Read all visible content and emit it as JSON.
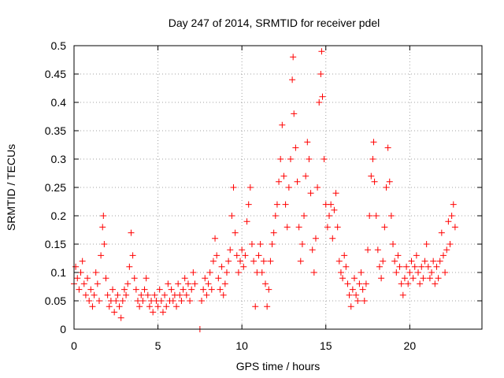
{
  "chart_data": {
    "type": "scatter",
    "title": "Day 247 of 2014, SRMTID for receiver pdel",
    "xlabel": "GPS time / hours",
    "ylabel": "SRMTID / TECUs",
    "xlim": [
      0,
      24.3
    ],
    "ylim": [
      0,
      0.5
    ],
    "grid": true,
    "marker": "+",
    "xticks": [
      0,
      5,
      10,
      15,
      20
    ],
    "xtick_labels": [
      "0",
      "5",
      "10",
      "15",
      "20"
    ],
    "yticks": [
      0,
      0.05,
      0.1,
      0.15,
      0.2,
      0.25,
      0.3,
      0.35,
      0.4,
      0.45,
      0.5
    ],
    "ytick_labels": [
      "0",
      "0.05",
      "0.1",
      "0.15",
      "0.2",
      "0.25",
      "0.3",
      "0.35",
      "0.4",
      "0.45",
      "0.5"
    ],
    "series": [
      {
        "name": "SRMTID",
        "color": "#ff0000",
        "points": [
          [
            0.0,
            0.08
          ],
          [
            0.1,
            0.11
          ],
          [
            0.2,
            0.09
          ],
          [
            0.3,
            0.07
          ],
          [
            0.4,
            0.1
          ],
          [
            0.5,
            0.12
          ],
          [
            0.6,
            0.08
          ],
          [
            0.7,
            0.06
          ],
          [
            0.8,
            0.09
          ],
          [
            0.9,
            0.05
          ],
          [
            1.0,
            0.07
          ],
          [
            1.1,
            0.04
          ],
          [
            1.2,
            0.06
          ],
          [
            1.3,
            0.1
          ],
          [
            1.4,
            0.08
          ],
          [
            1.5,
            0.05
          ],
          [
            1.6,
            0.13
          ],
          [
            1.7,
            0.18
          ],
          [
            1.75,
            0.2
          ],
          [
            1.8,
            0.15
          ],
          [
            1.9,
            0.09
          ],
          [
            2.0,
            0.06
          ],
          [
            2.1,
            0.04
          ],
          [
            2.2,
            0.05
          ],
          [
            2.3,
            0.07
          ],
          [
            2.4,
            0.03
          ],
          [
            2.5,
            0.05
          ],
          [
            2.6,
            0.06
          ],
          [
            2.7,
            0.04
          ],
          [
            2.8,
            0.02
          ],
          [
            2.9,
            0.05
          ],
          [
            3.0,
            0.07
          ],
          [
            3.1,
            0.06
          ],
          [
            3.2,
            0.08
          ],
          [
            3.3,
            0.11
          ],
          [
            3.4,
            0.17
          ],
          [
            3.5,
            0.13
          ],
          [
            3.6,
            0.09
          ],
          [
            3.7,
            0.07
          ],
          [
            3.8,
            0.05
          ],
          [
            3.9,
            0.04
          ],
          [
            4.0,
            0.06
          ],
          [
            4.1,
            0.05
          ],
          [
            4.2,
            0.07
          ],
          [
            4.3,
            0.09
          ],
          [
            4.4,
            0.06
          ],
          [
            4.5,
            0.04
          ],
          [
            4.6,
            0.05
          ],
          [
            4.7,
            0.03
          ],
          [
            4.8,
            0.06
          ],
          [
            4.9,
            0.05
          ],
          [
            5.0,
            0.04
          ],
          [
            5.1,
            0.07
          ],
          [
            5.2,
            0.05
          ],
          [
            5.3,
            0.03
          ],
          [
            5.4,
            0.06
          ],
          [
            5.5,
            0.04
          ],
          [
            5.6,
            0.08
          ],
          [
            5.7,
            0.05
          ],
          [
            5.8,
            0.07
          ],
          [
            5.9,
            0.05
          ],
          [
            6.0,
            0.06
          ],
          [
            6.1,
            0.04
          ],
          [
            6.2,
            0.08
          ],
          [
            6.3,
            0.06
          ],
          [
            6.4,
            0.05
          ],
          [
            6.5,
            0.07
          ],
          [
            6.6,
            0.09
          ],
          [
            6.7,
            0.06
          ],
          [
            6.8,
            0.08
          ],
          [
            6.9,
            0.05
          ],
          [
            7.0,
            0.07
          ],
          [
            7.1,
            0.1
          ],
          [
            7.2,
            0.08
          ],
          [
            7.5,
            0.0
          ],
          [
            7.6,
            0.05
          ],
          [
            7.7,
            0.07
          ],
          [
            7.8,
            0.09
          ],
          [
            7.9,
            0.06
          ],
          [
            8.0,
            0.08
          ],
          [
            8.1,
            0.1
          ],
          [
            8.2,
            0.07
          ],
          [
            8.3,
            0.12
          ],
          [
            8.4,
            0.16
          ],
          [
            8.5,
            0.13
          ],
          [
            8.6,
            0.09
          ],
          [
            8.7,
            0.07
          ],
          [
            8.8,
            0.11
          ],
          [
            8.9,
            0.06
          ],
          [
            9.0,
            0.08
          ],
          [
            9.1,
            0.1
          ],
          [
            9.2,
            0.12
          ],
          [
            9.3,
            0.14
          ],
          [
            9.4,
            0.2
          ],
          [
            9.5,
            0.25
          ],
          [
            9.6,
            0.17
          ],
          [
            9.7,
            0.13
          ],
          [
            9.8,
            0.1
          ],
          [
            9.9,
            0.12
          ],
          [
            10.0,
            0.14
          ],
          [
            10.1,
            0.11
          ],
          [
            10.2,
            0.13
          ],
          [
            10.3,
            0.19
          ],
          [
            10.4,
            0.22
          ],
          [
            10.5,
            0.25
          ],
          [
            10.6,
            0.15
          ],
          [
            10.7,
            0.12
          ],
          [
            10.8,
            0.04
          ],
          [
            10.9,
            0.1
          ],
          [
            11.0,
            0.13
          ],
          [
            11.1,
            0.15
          ],
          [
            11.2,
            0.1
          ],
          [
            11.3,
            0.12
          ],
          [
            11.4,
            0.08
          ],
          [
            11.5,
            0.04
          ],
          [
            11.6,
            0.07
          ],
          [
            11.7,
            0.12
          ],
          [
            11.8,
            0.15
          ],
          [
            11.9,
            0.17
          ],
          [
            12.0,
            0.2
          ],
          [
            12.1,
            0.22
          ],
          [
            12.2,
            0.26
          ],
          [
            12.3,
            0.3
          ],
          [
            12.4,
            0.36
          ],
          [
            12.5,
            0.27
          ],
          [
            12.6,
            0.22
          ],
          [
            12.7,
            0.18
          ],
          [
            12.8,
            0.25
          ],
          [
            12.9,
            0.3
          ],
          [
            13.0,
            0.44
          ],
          [
            13.05,
            0.48
          ],
          [
            13.1,
            0.38
          ],
          [
            13.2,
            0.32
          ],
          [
            13.3,
            0.26
          ],
          [
            13.4,
            0.18
          ],
          [
            13.5,
            0.12
          ],
          [
            13.6,
            0.15
          ],
          [
            13.7,
            0.2
          ],
          [
            13.8,
            0.27
          ],
          [
            13.9,
            0.33
          ],
          [
            14.0,
            0.3
          ],
          [
            14.1,
            0.24
          ],
          [
            14.2,
            0.14
          ],
          [
            14.3,
            0.1
          ],
          [
            14.4,
            0.16
          ],
          [
            14.5,
            0.25
          ],
          [
            14.6,
            0.4
          ],
          [
            14.7,
            0.45
          ],
          [
            14.75,
            0.49
          ],
          [
            14.8,
            0.41
          ],
          [
            14.9,
            0.3
          ],
          [
            15.0,
            0.22
          ],
          [
            15.1,
            0.18
          ],
          [
            15.2,
            0.2
          ],
          [
            15.3,
            0.22
          ],
          [
            15.4,
            0.16
          ],
          [
            15.5,
            0.21
          ],
          [
            15.6,
            0.24
          ],
          [
            15.7,
            0.18
          ],
          [
            15.8,
            0.12
          ],
          [
            15.9,
            0.1
          ],
          [
            16.0,
            0.09
          ],
          [
            16.1,
            0.13
          ],
          [
            16.2,
            0.11
          ],
          [
            16.3,
            0.08
          ],
          [
            16.4,
            0.06
          ],
          [
            16.5,
            0.04
          ],
          [
            16.6,
            0.07
          ],
          [
            16.7,
            0.09
          ],
          [
            16.8,
            0.06
          ],
          [
            16.9,
            0.05
          ],
          [
            17.0,
            0.08
          ],
          [
            17.1,
            0.1
          ],
          [
            17.2,
            0.07
          ],
          [
            17.3,
            0.05
          ],
          [
            17.4,
            0.08
          ],
          [
            17.5,
            0.14
          ],
          [
            17.6,
            0.2
          ],
          [
            17.7,
            0.27
          ],
          [
            17.8,
            0.3
          ],
          [
            17.85,
            0.33
          ],
          [
            17.9,
            0.26
          ],
          [
            18.0,
            0.2
          ],
          [
            18.1,
            0.14
          ],
          [
            18.2,
            0.11
          ],
          [
            18.3,
            0.09
          ],
          [
            18.4,
            0.12
          ],
          [
            18.5,
            0.18
          ],
          [
            18.6,
            0.25
          ],
          [
            18.7,
            0.32
          ],
          [
            18.8,
            0.26
          ],
          [
            18.9,
            0.2
          ],
          [
            19.0,
            0.15
          ],
          [
            19.1,
            0.12
          ],
          [
            19.2,
            0.1
          ],
          [
            19.3,
            0.13
          ],
          [
            19.4,
            0.11
          ],
          [
            19.5,
            0.08
          ],
          [
            19.6,
            0.06
          ],
          [
            19.7,
            0.09
          ],
          [
            19.8,
            0.11
          ],
          [
            19.9,
            0.08
          ],
          [
            20.0,
            0.1
          ],
          [
            20.1,
            0.12
          ],
          [
            20.2,
            0.09
          ],
          [
            20.3,
            0.11
          ],
          [
            20.4,
            0.13
          ],
          [
            20.5,
            0.1
          ],
          [
            20.6,
            0.08
          ],
          [
            20.7,
            0.11
          ],
          [
            20.8,
            0.09
          ],
          [
            20.9,
            0.12
          ],
          [
            21.0,
            0.15
          ],
          [
            21.1,
            0.11
          ],
          [
            21.2,
            0.09
          ],
          [
            21.3,
            0.1
          ],
          [
            21.4,
            0.12
          ],
          [
            21.5,
            0.08
          ],
          [
            21.6,
            0.11
          ],
          [
            21.7,
            0.09
          ],
          [
            21.8,
            0.12
          ],
          [
            21.9,
            0.17
          ],
          [
            22.0,
            0.13
          ],
          [
            22.1,
            0.1
          ],
          [
            22.2,
            0.14
          ],
          [
            22.3,
            0.19
          ],
          [
            22.4,
            0.15
          ],
          [
            22.5,
            0.2
          ],
          [
            22.6,
            0.22
          ],
          [
            22.7,
            0.18
          ]
        ]
      }
    ]
  }
}
